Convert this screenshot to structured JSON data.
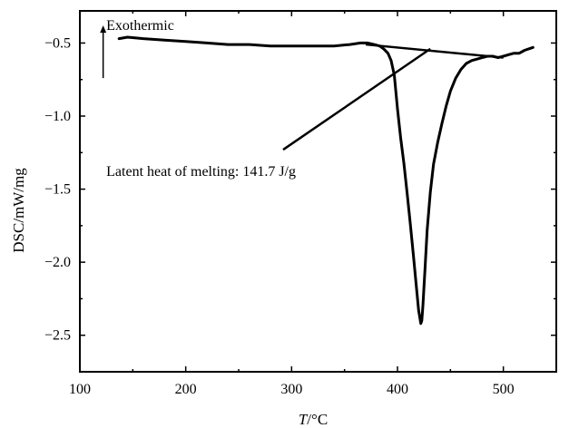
{
  "chart_data": {
    "type": "line",
    "title": "",
    "xlabel_italic": "T",
    "xlabel_rest": "/°C",
    "ylabel": "DSC/mW/mg",
    "xlim": [
      100,
      550
    ],
    "ylim": [
      -2.75,
      -0.28
    ],
    "xticks": [
      100,
      200,
      300,
      400,
      500
    ],
    "yticks": [
      -0.5,
      -1.0,
      -1.5,
      -2.0,
      -2.5
    ],
    "xtick_labels": [
      "100",
      "200",
      "300",
      "400",
      "500"
    ],
    "ytick_labels": [
      "−0.5",
      "−1.0",
      "−1.5",
      "−2.0",
      "−2.5"
    ],
    "grid": false,
    "series": [
      {
        "x": [
          137,
          145,
          160,
          180,
          200,
          220,
          240,
          260,
          280,
          300,
          320,
          340,
          355,
          365,
          372,
          378,
          383,
          387,
          391,
          394,
          397,
          400,
          403,
          406,
          409,
          412,
          415,
          418,
          420,
          422,
          423,
          424,
          426,
          428,
          431,
          434,
          438,
          442,
          446,
          450,
          455,
          460,
          465,
          470,
          475,
          480,
          485,
          490,
          495,
          500,
          505,
          510,
          515,
          520,
          528
        ],
        "y": [
          -0.47,
          -0.46,
          -0.47,
          -0.48,
          -0.49,
          -0.5,
          -0.51,
          -0.51,
          -0.52,
          -0.52,
          -0.52,
          -0.52,
          -0.51,
          -0.5,
          -0.5,
          -0.51,
          -0.52,
          -0.54,
          -0.57,
          -0.62,
          -0.72,
          -0.95,
          -1.15,
          -1.32,
          -1.52,
          -1.73,
          -1.95,
          -2.18,
          -2.33,
          -2.42,
          -2.4,
          -2.3,
          -2.05,
          -1.78,
          -1.52,
          -1.33,
          -1.18,
          -1.05,
          -0.93,
          -0.83,
          -0.74,
          -0.68,
          -0.64,
          -0.62,
          -0.61,
          -0.6,
          -0.59,
          -0.59,
          -0.6,
          -0.59,
          -0.58,
          -0.57,
          -0.57,
          -0.55,
          -0.53
        ]
      }
    ],
    "baseline": {
      "x": [
        370,
        500
      ],
      "y": [
        -0.51,
        -0.6
      ]
    },
    "tangent": {
      "x": [
        292,
        431
      ],
      "y": [
        -1.23,
        -0.54
      ]
    },
    "arrow": {
      "x": 122,
      "y_from": -0.74,
      "y_to": -0.38
    },
    "annotations": [
      {
        "text": "Exothermic",
        "x": 125,
        "y": -0.38
      },
      {
        "text": "Latent heat of melting: 141.7 J/g",
        "x": 125,
        "y": -1.38
      }
    ]
  }
}
